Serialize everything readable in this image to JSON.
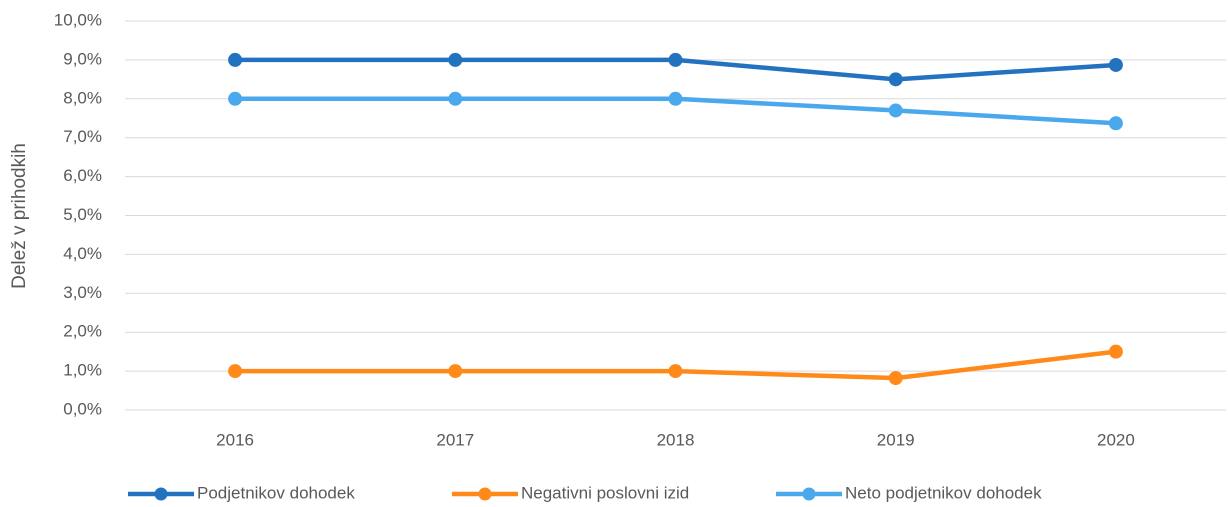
{
  "chart_data": {
    "type": "line",
    "y_label": "Delež v prihodkih",
    "categories": [
      "2016",
      "2017",
      "2018",
      "2019",
      "2020"
    ],
    "series": [
      {
        "name": "Podjetnikov dohodek",
        "color": "#2372c0",
        "values": [
          9.0,
          9.0,
          9.0,
          8.5,
          8.87
        ]
      },
      {
        "name": "Negativni poslovni izid",
        "color": "#ff8a1a",
        "values": [
          1.0,
          1.0,
          1.0,
          0.82,
          1.5
        ]
      },
      {
        "name": "Neto podjetnikov dohodek",
        "color": "#4aa8ec",
        "values": [
          8.0,
          8.0,
          8.0,
          7.7,
          7.37
        ]
      }
    ],
    "ylim": [
      0,
      10
    ],
    "yticks": [
      {
        "value": 0,
        "label": "0,0%"
      },
      {
        "value": 1,
        "label": "1,0%"
      },
      {
        "value": 2,
        "label": "2,0%"
      },
      {
        "value": 3,
        "label": "3,0%"
      },
      {
        "value": 4,
        "label": "4,0%"
      },
      {
        "value": 5,
        "label": "5,0%"
      },
      {
        "value": 6,
        "label": "6,0%"
      },
      {
        "value": 7,
        "label": "7,0%"
      },
      {
        "value": 8,
        "label": "8,0%"
      },
      {
        "value": 9,
        "label": "9,0%"
      },
      {
        "value": 10,
        "label": "10,0%"
      }
    ],
    "grid": true,
    "legend": "bottom"
  }
}
